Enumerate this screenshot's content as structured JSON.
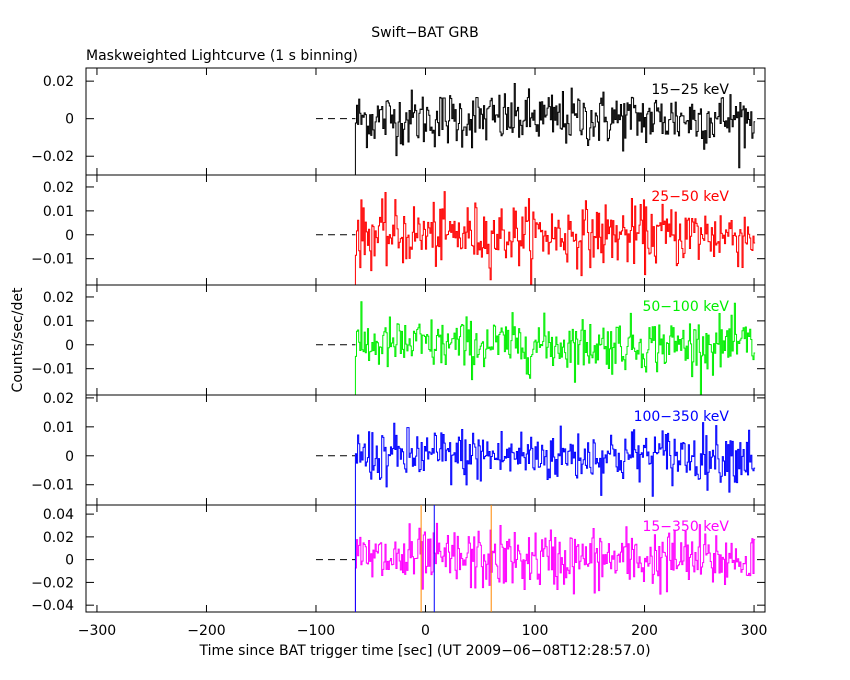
{
  "chart_data": {
    "type": "line",
    "title": "Swift−BAT GRB",
    "subtitle": "Maskweighted Lightcurve (1 s binning)",
    "xlabel": "Time since BAT trigger time [sec] (UT 2009−06−08T12:28:57.0)",
    "ylabel": "Counts/sec/det",
    "xlim": [
      -310,
      310
    ],
    "x_ticks": [
      -300,
      -200,
      -100,
      0,
      100,
      200,
      300
    ],
    "data_start_time": -64,
    "data_end_time": 300,
    "binning_sec": 1,
    "background_dashes_from": -100,
    "vertical_markers": [
      {
        "x": -64,
        "color": "#0000ff",
        "panel": 4
      },
      {
        "x": -4,
        "color": "#ff8800",
        "panel": 4
      },
      {
        "x": 8,
        "color": "#0000ff",
        "panel": 4
      },
      {
        "x": 60,
        "color": "#ff8800",
        "panel": 4
      }
    ],
    "panels": [
      {
        "band": "15−25 keV",
        "color": "#000000",
        "ylim": [
          -0.03,
          0.027
        ],
        "y_ticks": [
          0.02,
          0,
          -0.02
        ],
        "y_tick_labels": [
          "0.02",
          "0",
          "−0.02"
        ],
        "noise_sigma": 0.0075
      },
      {
        "band": "25−50 keV",
        "color": "#ff0000",
        "ylim": [
          -0.021,
          0.025
        ],
        "y_ticks": [
          0.02,
          0.01,
          0,
          -0.01
        ],
        "y_tick_labels": [
          "0.02",
          "0.01",
          "0",
          "−0.01"
        ],
        "noise_sigma": 0.0065
      },
      {
        "band": "50−100 keV",
        "color": "#00ee00",
        "ylim": [
          -0.021,
          0.025
        ],
        "y_ticks": [
          0.02,
          0.01,
          0,
          -0.01
        ],
        "y_tick_labels": [
          "0.02",
          "0.01",
          "0",
          "−0.01"
        ],
        "noise_sigma": 0.0055
      },
      {
        "band": "100−350 keV",
        "color": "#0000ff",
        "ylim": [
          -0.017,
          0.021
        ],
        "y_ticks": [
          0.02,
          0.01,
          0,
          -0.01
        ],
        "y_tick_labels": [
          "0.02",
          "0.01",
          "0",
          "−0.01"
        ],
        "noise_sigma": 0.0048
      },
      {
        "band": "15−350 keV",
        "color": "#ff00ff",
        "ylim": [
          -0.046,
          0.048
        ],
        "y_ticks": [
          0.04,
          0.02,
          0,
          -0.02,
          -0.04
        ],
        "y_tick_labels": [
          "0.04",
          "0.02",
          "0",
          "−0.02",
          "−0.04"
        ],
        "noise_sigma": 0.0135
      }
    ]
  }
}
